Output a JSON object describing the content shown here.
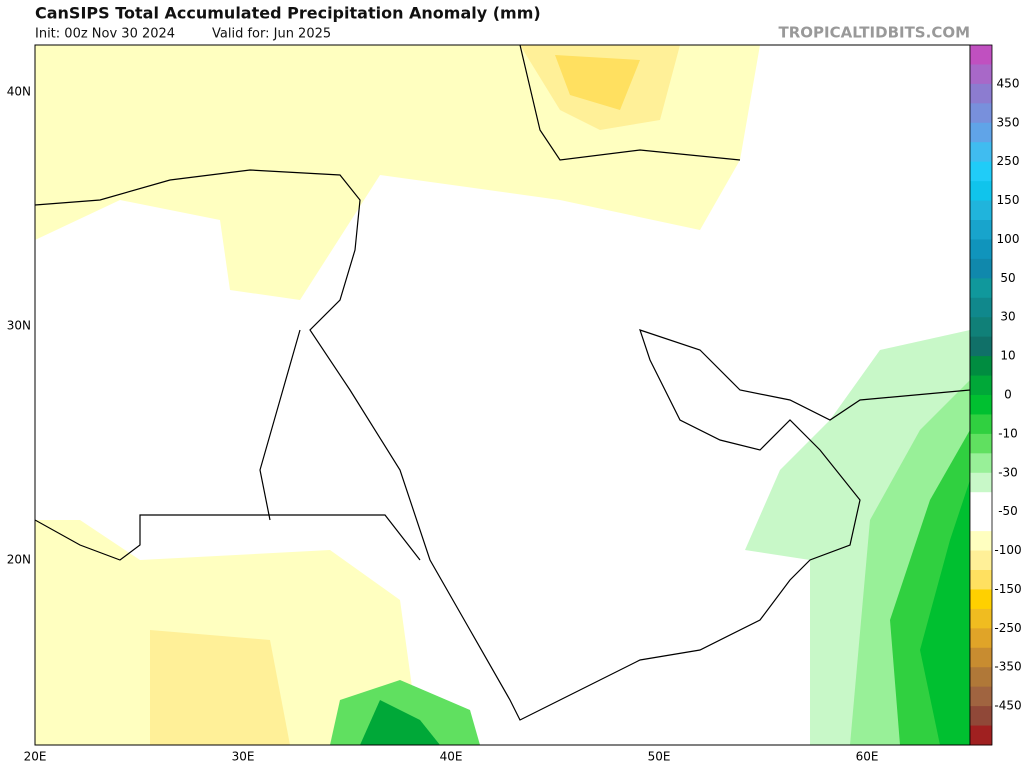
{
  "header": {
    "title": "CanSIPS Total Accumulated Precipitation Anomaly (mm)",
    "init": "Init: 00z Nov 30 2024",
    "valid": "Valid for: Jun 2025",
    "site": "TROPICALTIDBITS.COM"
  },
  "map": {
    "lat_labels": [
      "40N",
      "30N",
      "20N"
    ],
    "lon_labels": [
      "20E",
      "30E",
      "40E",
      "50E",
      "60E"
    ]
  },
  "colorbar": {
    "labels": [
      "450",
      "350",
      "250",
      "150",
      "100",
      "50",
      "30",
      "10",
      "0",
      "-10",
      "-30",
      "-50",
      "-100",
      "-150",
      "-250",
      "-350",
      "-450"
    ],
    "colors": [
      "#c050c0",
      "#a868c8",
      "#8c7cd0",
      "#7890dc",
      "#60a4e8",
      "#40bcf0",
      "#20ccf8",
      "#10c4ec",
      "#20b4dc",
      "#18a4cc",
      "#1094bc",
      "#1088ac",
      "#10989c",
      "#10888c",
      "#108078",
      "#107068",
      "#008c40",
      "#00a838",
      "#00c030",
      "#30d040",
      "#60e060",
      "#98f098",
      "#c8f8c8",
      "#ffffff",
      "#ffffff",
      "#ffffc0",
      "#fff098",
      "#ffe060",
      "#ffd000",
      "#f0bc20",
      "#e0a428",
      "#c88c30",
      "#b07838",
      "#a06440",
      "#904838",
      "#a02020"
    ]
  }
}
